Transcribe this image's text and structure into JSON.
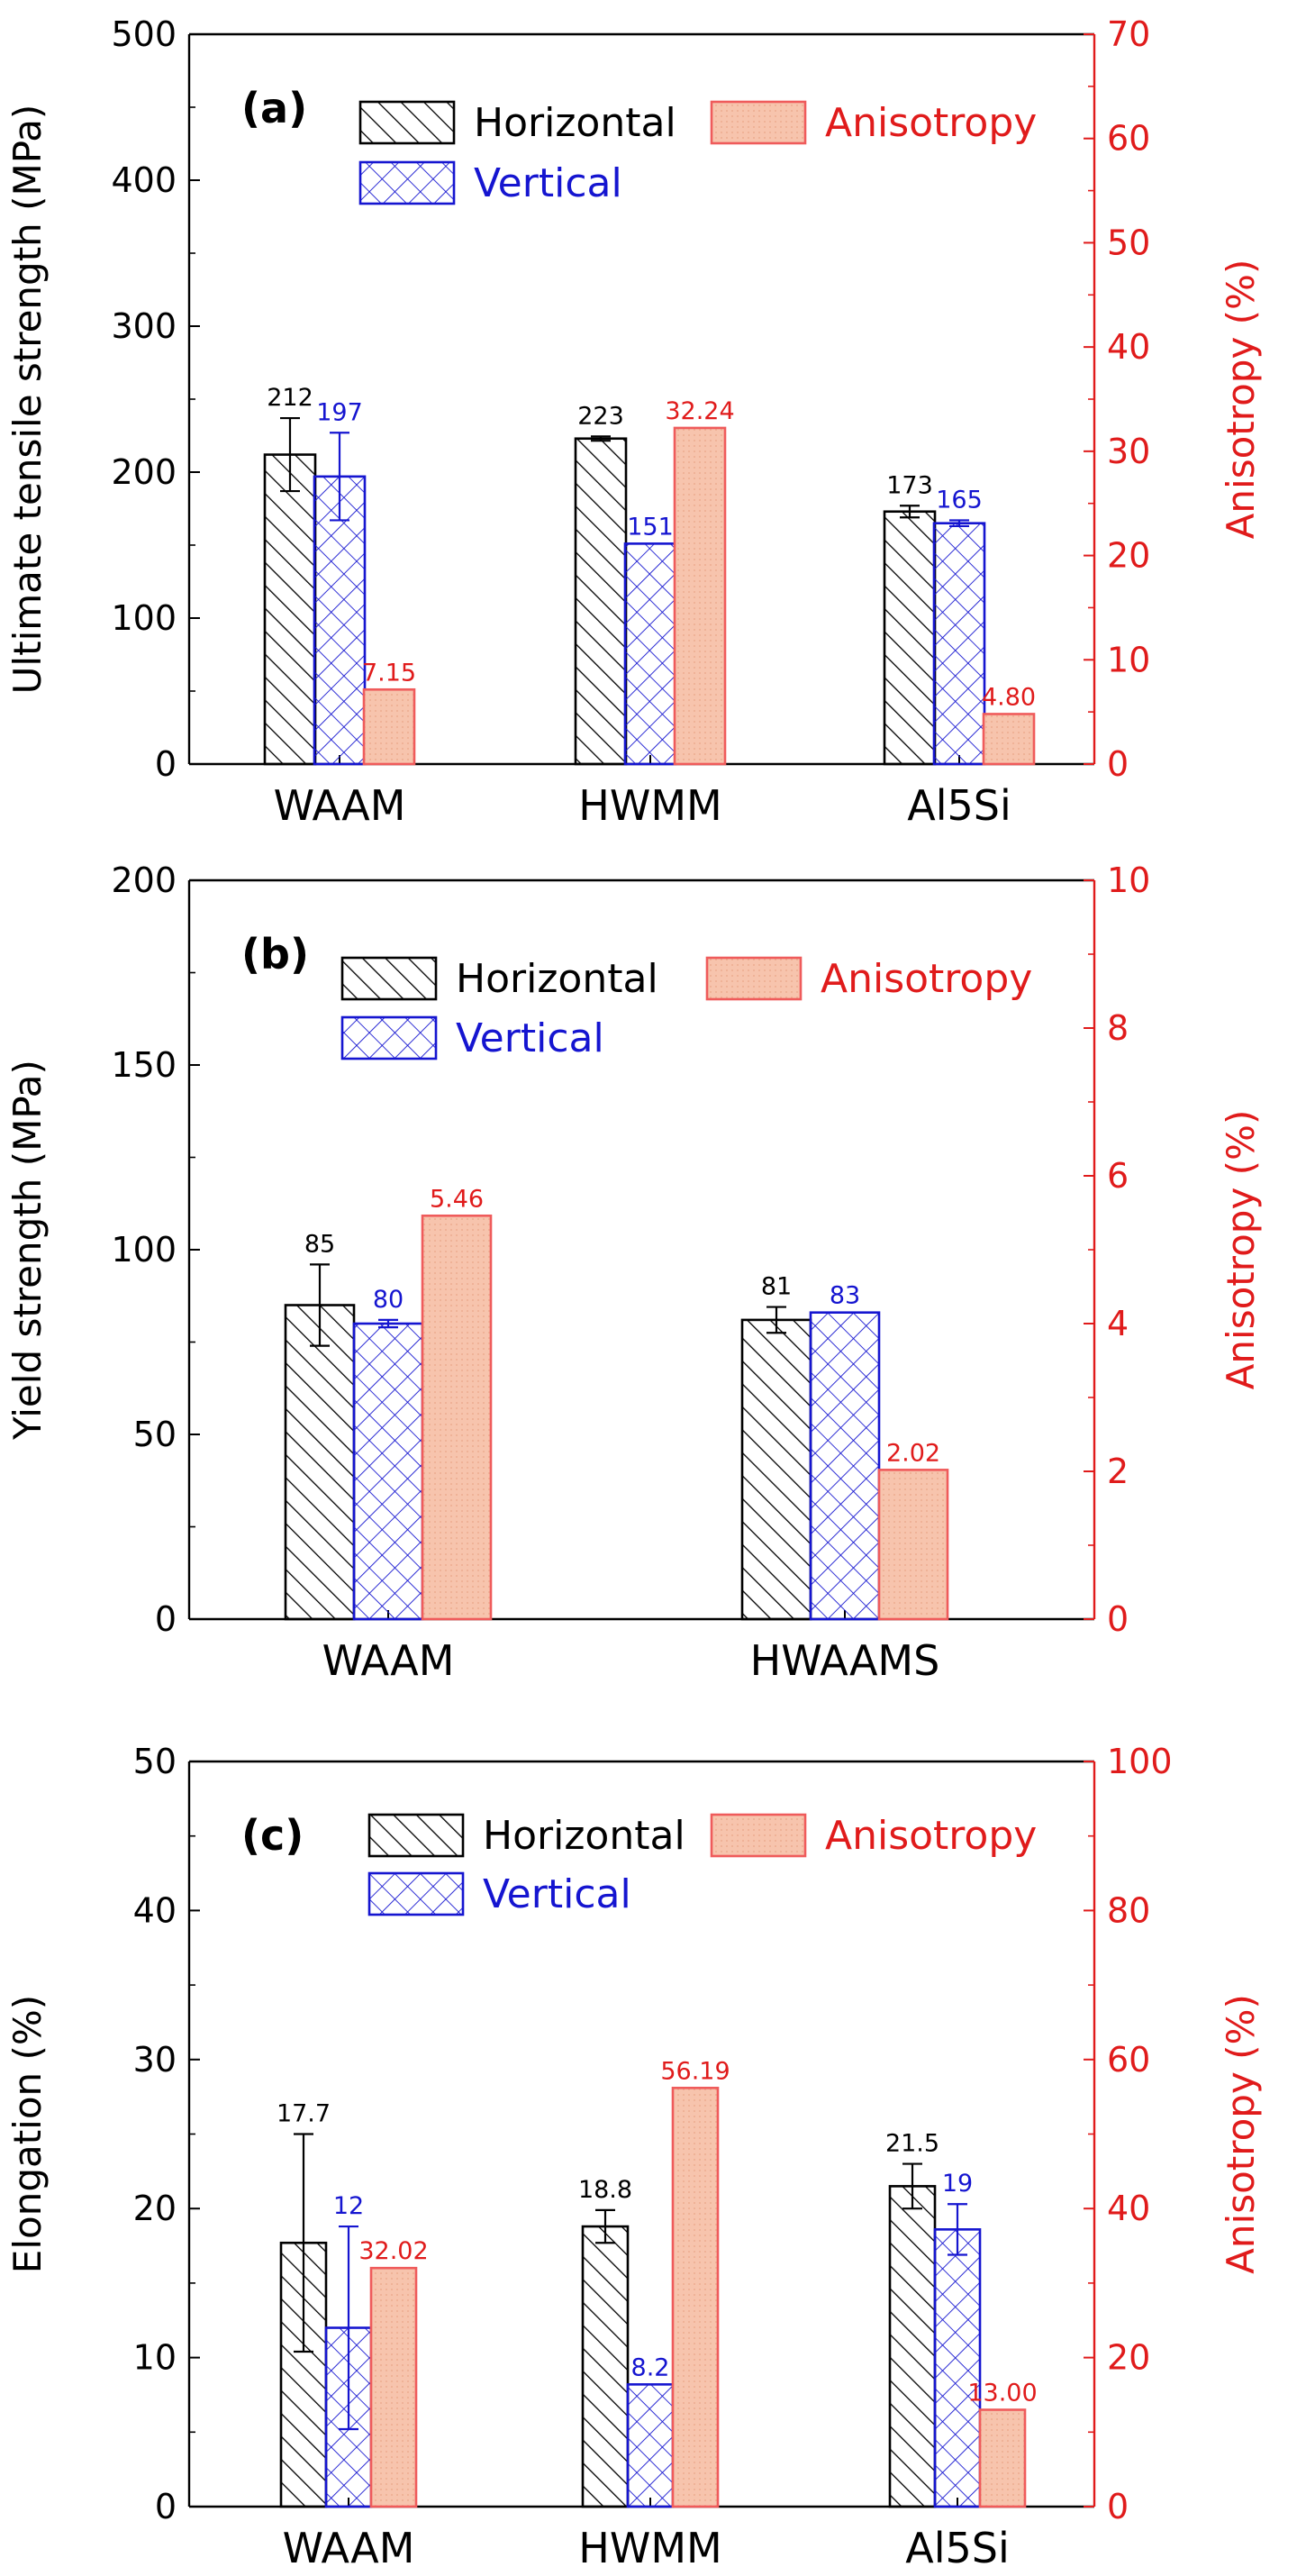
{
  "colors": {
    "horizontal": "#000000",
    "vertical": "#1515d0",
    "anisotropy_fill": "#f7c4ad",
    "anisotropy_edge": "#ef5b5b",
    "right_axis": "#e01b1b",
    "axis": "#000000"
  },
  "legend": {
    "horizontal": "Horizontal",
    "vertical": "Vertical",
    "anisotropy": "Anisotropy"
  },
  "chart_data": [
    {
      "type": "bar",
      "panel": "(a)",
      "ylabel": "Ultimate tensile strength (MPa)",
      "ylabel_right": "Anisotropy (%)",
      "ylim": [
        0,
        500
      ],
      "yticks": [
        0,
        100,
        200,
        300,
        400,
        500
      ],
      "ylim_right": [
        0,
        70
      ],
      "yticks_right": [
        0,
        10,
        20,
        30,
        40,
        50,
        60,
        70
      ],
      "categories": [
        "WAAM",
        "HWMM",
        "Al5Si"
      ],
      "series": [
        {
          "name": "Horizontal",
          "axis": "left",
          "values": [
            212,
            223,
            173
          ],
          "errors": [
            25,
            1.5,
            4
          ],
          "labels": [
            "212",
            "223",
            "173"
          ]
        },
        {
          "name": "Vertical",
          "axis": "left",
          "values": [
            197,
            151,
            165
          ],
          "errors": [
            30,
            null,
            2
          ],
          "labels": [
            "197",
            "151",
            "165"
          ]
        },
        {
          "name": "Anisotropy",
          "axis": "right",
          "values": [
            7.15,
            32.24,
            4.8
          ],
          "labels": [
            "7.15",
            "32.24",
            "4.80"
          ]
        }
      ]
    },
    {
      "type": "bar",
      "panel": "(b)",
      "ylabel": "Yield strength (MPa)",
      "ylabel_right": "Anisotropy (%)",
      "ylim": [
        0,
        200
      ],
      "yticks": [
        0,
        50,
        100,
        150,
        200
      ],
      "ylim_right": [
        0,
        10
      ],
      "yticks_right": [
        0,
        2,
        4,
        6,
        8,
        10
      ],
      "categories": [
        "WAAM",
        "HWAAMS"
      ],
      "series": [
        {
          "name": "Horizontal",
          "axis": "left",
          "values": [
            85,
            81
          ],
          "errors": [
            11,
            3.5
          ],
          "labels": [
            "85",
            "81"
          ]
        },
        {
          "name": "Vertical",
          "axis": "left",
          "values": [
            80,
            83
          ],
          "errors": [
            1,
            null
          ],
          "labels": [
            "80",
            "83"
          ]
        },
        {
          "name": "Anisotropy",
          "axis": "right",
          "values": [
            5.46,
            2.02
          ],
          "labels": [
            "5.46",
            "2.02"
          ]
        }
      ]
    },
    {
      "type": "bar",
      "panel": "(c)",
      "ylabel": "Elongation (%)",
      "ylabel_right": "Anisotropy (%)",
      "ylim": [
        0,
        50
      ],
      "yticks": [
        0,
        10,
        20,
        30,
        40,
        50
      ],
      "ylim_right": [
        0,
        100
      ],
      "yticks_right": [
        0,
        20,
        40,
        60,
        80,
        100
      ],
      "categories": [
        "WAAM",
        "HWMM",
        "Al5Si"
      ],
      "series": [
        {
          "name": "Horizontal",
          "axis": "left",
          "values": [
            17.7,
            18.8,
            21.5
          ],
          "errors": [
            7.3,
            1.1,
            1.5
          ],
          "labels": [
            "17.7",
            "18.8",
            "21.5"
          ]
        },
        {
          "name": "Vertical",
          "axis": "left",
          "values": [
            12,
            8.2,
            18.6
          ],
          "errors": [
            6.8,
            null,
            1.7
          ],
          "labels": [
            "12",
            "8.2",
            "19"
          ]
        },
        {
          "name": "Anisotropy",
          "axis": "right",
          "values": [
            32.02,
            56.19,
            13.0
          ],
          "labels": [
            "32.02",
            "56.19",
            "13.00"
          ]
        }
      ]
    }
  ]
}
